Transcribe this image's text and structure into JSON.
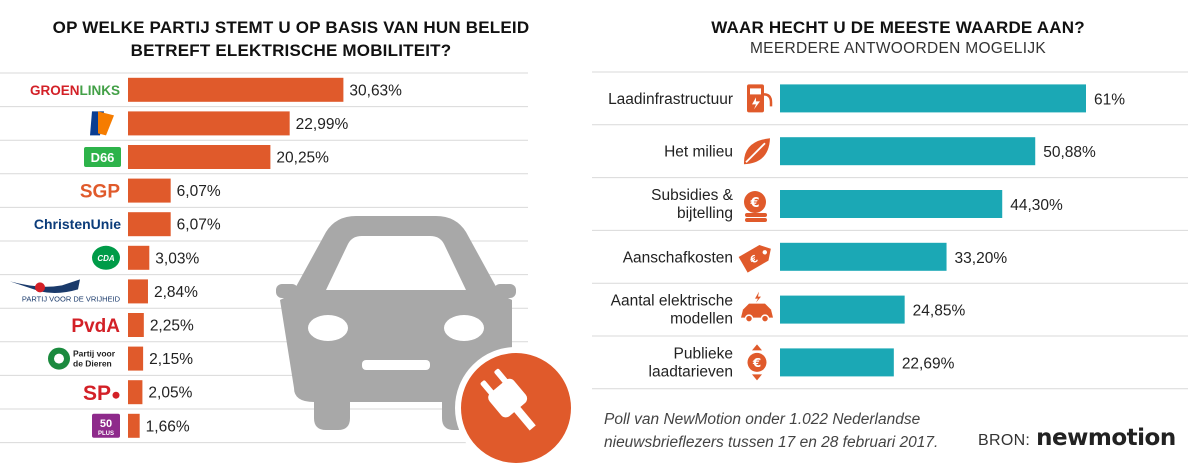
{
  "left": {
    "title_line1": "OP WELKE PARTIJ STEMT U OP BASIS VAN HUN BELEID",
    "title_line2": "BETREFT ELEKTRISCHE MOBILITEIT?"
  },
  "right": {
    "title": "WAAR HECHT U DE MEESTE WAARDE AAN?",
    "subtitle": "MEERDERE ANTWOORDEN MOGELIJK"
  },
  "footnote": {
    "line1": "Poll van NewMotion onder 1.022 Nederlandse",
    "line2": "nieuwsbrieflezers tussen 17 en 28 februari 2017."
  },
  "source": {
    "label": "BRON:",
    "brand": "newmotion"
  },
  "colors": {
    "orange": "#e05a2b",
    "teal": "#1ba8b5",
    "car_gray": "#a8a8a8"
  },
  "chart_data": [
    {
      "type": "bar",
      "orientation": "horizontal",
      "categories": [
        "GROENLINKS",
        "VVD",
        "D66",
        "SGP",
        "ChristenUnie",
        "CDA",
        "PARTIJ VOOR DE VRIJHEID",
        "PvdA",
        "Partij voor de Dieren",
        "SP",
        "50PLUS"
      ],
      "values": [
        30.63,
        22.99,
        20.25,
        6.07,
        6.07,
        3.03,
        2.84,
        2.25,
        2.15,
        2.05,
        1.66
      ],
      "labels": [
        "30,63%",
        "22,99%",
        "20,25%",
        "6,07%",
        "6,07%",
        "3,03%",
        "2,84%",
        "2,25%",
        "2,15%",
        "2,05%",
        "1,66%"
      ],
      "xlim": [
        0,
        31
      ],
      "color": "#e05a2b",
      "grid": true
    },
    {
      "type": "bar",
      "orientation": "horizontal",
      "categories": [
        "Laadinfrastructuur",
        "Het milieu",
        "Subsidies & bijtelling",
        "Aanschafkosten",
        "Aantal elektrische modellen",
        "Publieke laadtarieven"
      ],
      "values": [
        61,
        50.88,
        44.3,
        33.2,
        24.85,
        22.69
      ],
      "labels": [
        "61%",
        "50,88%",
        "44,30%",
        "33,20%",
        "24,85%",
        "22,69%"
      ],
      "icons": [
        "charging-station-icon",
        "leaf-icon",
        "euro-coins-icon",
        "price-tag-icon",
        "electric-car-icon",
        "euro-price-icon"
      ],
      "xlim": [
        0,
        61
      ],
      "color": "#1ba8b5",
      "grid": true
    }
  ]
}
